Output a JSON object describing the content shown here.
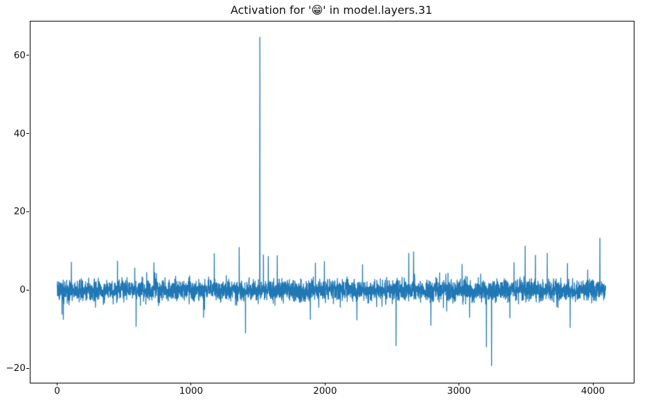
{
  "chart_data": {
    "type": "line",
    "title": "Activation for '😁' in model.layers.31",
    "series_color": "#1f77b4",
    "line_width": 1.3,
    "background_color": "#ffffff",
    "spine_color": "#000000",
    "n_points": 4096,
    "x_start": 0,
    "xlim": [
      -204.75,
      4299.75
    ],
    "ylim": [
      -23.5,
      68.8
    ],
    "grid": false,
    "legend": null,
    "x_axis": {
      "tick_values": [
        0,
        1000,
        2000,
        3000,
        4000
      ],
      "tick_labels": [
        "0",
        "1000",
        "2000",
        "3000",
        "4000"
      ]
    },
    "y_axis": {
      "tick_values": [
        -20,
        0,
        20,
        40,
        60
      ],
      "tick_labels": [
        "−20",
        "0",
        "20",
        "40",
        "60"
      ]
    },
    "noise": {
      "seed": 1337,
      "mean": -0.1,
      "std": 1.3,
      "tail_prob": 0.012,
      "tail_scale_min": 1.6,
      "tail_scale_max": 3.0,
      "tail_clamp": 7.0
    },
    "spikes": [
      {
        "x": 36,
        "y": -6.2
      },
      {
        "x": 46,
        "y": -7.5
      },
      {
        "x": 106,
        "y": 7.1
      },
      {
        "x": 450,
        "y": 7.4
      },
      {
        "x": 579,
        "y": 5.6
      },
      {
        "x": 589,
        "y": -9.3
      },
      {
        "x": 1173,
        "y": 9.3
      },
      {
        "x": 1359,
        "y": 10.9
      },
      {
        "x": 1406,
        "y": -11.0
      },
      {
        "x": 1513,
        "y": 64.6
      },
      {
        "x": 1540,
        "y": 9.0
      },
      {
        "x": 1576,
        "y": 8.6
      },
      {
        "x": 1643,
        "y": 8.8
      },
      {
        "x": 1890,
        "y": -7.5
      },
      {
        "x": 1928,
        "y": 6.9
      },
      {
        "x": 1995,
        "y": 7.3
      },
      {
        "x": 2238,
        "y": -7.6
      },
      {
        "x": 2280,
        "y": 6.5
      },
      {
        "x": 2530,
        "y": -14.2
      },
      {
        "x": 2625,
        "y": 9.4
      },
      {
        "x": 2661,
        "y": 9.8
      },
      {
        "x": 2790,
        "y": -9.0
      },
      {
        "x": 3023,
        "y": 6.6
      },
      {
        "x": 3205,
        "y": -14.5
      },
      {
        "x": 3243,
        "y": -19.3
      },
      {
        "x": 3380,
        "y": -7.1
      },
      {
        "x": 3411,
        "y": 7.0
      },
      {
        "x": 3494,
        "y": 11.3
      },
      {
        "x": 3571,
        "y": 8.9
      },
      {
        "x": 3659,
        "y": 9.4
      },
      {
        "x": 3810,
        "y": 6.8
      },
      {
        "x": 3830,
        "y": -9.6
      },
      {
        "x": 4052,
        "y": 13.3
      }
    ]
  }
}
